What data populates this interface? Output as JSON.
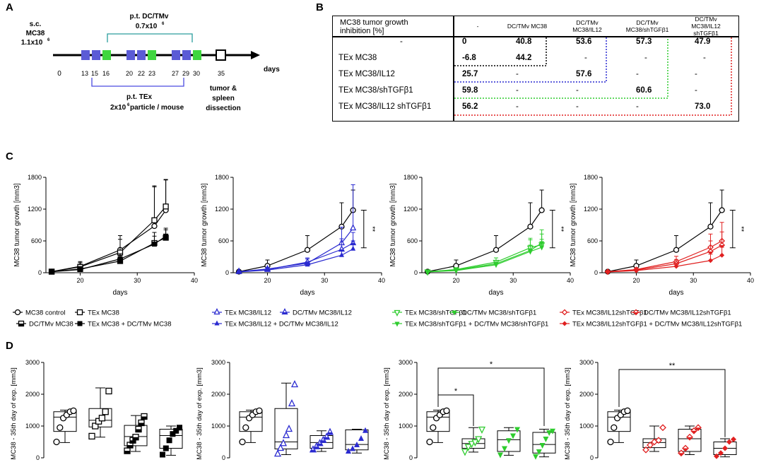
{
  "panels": {
    "A": "A",
    "B": "B",
    "C": "C",
    "D": "D"
  },
  "schedule": {
    "sc_label": "s.c.",
    "sc_cells": "MC38",
    "sc_dose": "1.1x10",
    "sc_dose_exp": "6",
    "dc_label": "p.t. DC/TMv",
    "dc_dose": "0.7x10",
    "dc_dose_exp": "6",
    "tex_label": "p.t. TEx",
    "tex_dose": "2x10",
    "tex_dose_exp": "6",
    "tex_dose_suffix": " particle / mouse",
    "day0": "0",
    "days": [
      "13",
      "15",
      "16",
      "20",
      "22",
      "23",
      "27",
      "29",
      "30",
      "35"
    ],
    "axis_label": "days",
    "endpoint_1": "tumor &",
    "endpoint_2": "spleen",
    "endpoint_3": "dissection",
    "colors": {
      "tex": "#5b5bd6",
      "dc": "#3fd63f",
      "bracket_dc": "#2a9d9d",
      "bracket_tex": "#4a4ae0"
    }
  },
  "table": {
    "title_1": "MC38 tumor growth",
    "title_2": "inhibition [%]",
    "headers": [
      "-",
      "DC/TMv MC38",
      "DC/TMv\nMC38/IL12",
      "DC/TMv\nMC38/shTGFβ1",
      "DC/TMv\nMC38/IL12\nshTGFβ1"
    ],
    "rows": [
      {
        "label": "-",
        "cells": [
          "0",
          "40.8",
          "53.6",
          "57.3",
          "47.9"
        ]
      },
      {
        "label": "TEx MC38",
        "cells": [
          "-6.8",
          "44.2",
          "",
          "",
          ""
        ]
      },
      {
        "label": "TEx MC38/IL12",
        "cells": [
          "25.7",
          "-",
          "57.6",
          "-",
          "-"
        ]
      },
      {
        "label": "TEx MC38/shTGFβ1",
        "cells": [
          "59.8",
          "-",
          "-",
          "60.6",
          "-"
        ]
      },
      {
        "label": "TEx MC38/IL12 shTGFβ1",
        "cells": [
          "56.2",
          "-",
          "-",
          "-",
          "73.0"
        ]
      }
    ],
    "row2_extra": [
      "-",
      "-",
      "-"
    ],
    "box_colors": [
      "#000000",
      "#2a2ad0",
      "#2ecc2e",
      "#e02020"
    ]
  },
  "chart_data": [
    {
      "type": "line",
      "id": "C1",
      "title": "",
      "xlabel": "days",
      "ylabel": "MC38 tumor growth [mm3]",
      "xlim": [
        14,
        40
      ],
      "ylim": [
        0,
        1800
      ],
      "xticks": [
        "20",
        "30",
        "40"
      ],
      "yticks": [
        "0",
        "600",
        "1200",
        "1800"
      ],
      "series": [
        {
          "name": "MC38 control",
          "x": [
            15,
            20,
            27,
            33,
            35
          ],
          "values": [
            20,
            120,
            430,
            880,
            1180
          ],
          "err": [
            15,
            90,
            270,
            740,
            580
          ]
        },
        {
          "name": "TEx MC38",
          "x": [
            15,
            20,
            27,
            33,
            35
          ],
          "values": [
            20,
            110,
            380,
            990,
            1250
          ],
          "err": [
            10,
            80,
            250,
            650,
            500
          ]
        },
        {
          "name": "DC/TMv MC38",
          "x": [
            15,
            20,
            27,
            33,
            35
          ],
          "values": [
            20,
            70,
            220,
            560,
            660
          ],
          "err": [
            10,
            40,
            100,
            200,
            150
          ]
        },
        {
          "name": "TEx MC38 + DC/TMv MC38",
          "x": [
            15,
            20,
            27,
            33,
            35
          ],
          "values": [
            18,
            60,
            260,
            540,
            690
          ],
          "err": [
            10,
            40,
            100,
            150,
            150
          ]
        }
      ]
    },
    {
      "type": "line",
      "id": "C2",
      "xlabel": "days",
      "ylabel": "MC38 tumor growth [mm3]",
      "xlim": [
        14,
        40
      ],
      "ylim": [
        0,
        1800
      ],
      "xticks": [
        "20",
        "30",
        "40"
      ],
      "yticks": [
        "0",
        "600",
        "1200",
        "1800"
      ],
      "significance": "**",
      "series": [
        {
          "name": "MC38 control",
          "x": [
            15,
            20,
            27,
            33,
            35
          ],
          "values": [
            20,
            130,
            430,
            870,
            1180
          ],
          "err": [
            15,
            110,
            270,
            450,
            380
          ]
        },
        {
          "name": "TEx MC38/IL12",
          "x": [
            15,
            20,
            27,
            33,
            35
          ],
          "values": [
            20,
            70,
            180,
            560,
            840
          ],
          "err": [
            10,
            30,
            80,
            300,
            820
          ]
        },
        {
          "name": "DC/TMv MC38/IL12",
          "x": [
            15,
            20,
            27,
            33,
            35
          ],
          "values": [
            18,
            60,
            200,
            440,
            560
          ],
          "err": [
            10,
            30,
            80,
            200,
            200
          ]
        },
        {
          "name": "TEx MC38/IL12 + DC/TMv MC38/IL12",
          "x": [
            15,
            20,
            27,
            33,
            35
          ],
          "values": [
            15,
            50,
            150,
            330,
            450
          ],
          "err": [
            10,
            30,
            60,
            100,
            150
          ]
        }
      ]
    },
    {
      "type": "line",
      "id": "C3",
      "xlabel": "days",
      "ylabel": "MC38 tumor growth [mm3]",
      "xlim": [
        14,
        40
      ],
      "ylim": [
        0,
        1800
      ],
      "xticks": [
        "20",
        "30",
        "40"
      ],
      "yticks": [
        "0",
        "600",
        "1200",
        "1800"
      ],
      "significance": "**",
      "series": [
        {
          "name": "MC38 control",
          "x": [
            15,
            20,
            27,
            33,
            35
          ],
          "values": [
            20,
            130,
            430,
            870,
            1180
          ],
          "err": [
            15,
            110,
            270,
            450,
            380
          ]
        },
        {
          "name": "TEx MC38/shTGFβ1",
          "x": [
            15,
            20,
            27,
            33,
            35
          ],
          "values": [
            20,
            60,
            200,
            470,
            530
          ],
          "err": [
            10,
            30,
            80,
            180,
            200
          ]
        },
        {
          "name": "DC/TMv MC38/shTGFβ1",
          "x": [
            15,
            20,
            27,
            33,
            35
          ],
          "values": [
            18,
            50,
            170,
            420,
            560
          ],
          "err": [
            10,
            30,
            60,
            200,
            250
          ]
        },
        {
          "name": "TEx MC38/shTGFβ1 + DC/TMv MC38/shTGFβ1",
          "x": [
            15,
            20,
            27,
            33,
            35
          ],
          "values": [
            15,
            40,
            150,
            400,
            480
          ],
          "err": [
            10,
            20,
            50,
            120,
            150
          ]
        }
      ]
    },
    {
      "type": "line",
      "id": "C4",
      "xlabel": "days",
      "ylabel": "MC38 tumor growth [mm3]",
      "xlim": [
        14,
        40
      ],
      "ylim": [
        0,
        1800
      ],
      "xticks": [
        "20",
        "30",
        "40"
      ],
      "yticks": [
        "0",
        "600",
        "1200",
        "1800"
      ],
      "significance": "**",
      "series": [
        {
          "name": "MC38 control",
          "x": [
            15,
            20,
            27,
            33,
            35
          ],
          "values": [
            20,
            130,
            430,
            870,
            1180
          ],
          "err": [
            15,
            110,
            270,
            450,
            380
          ]
        },
        {
          "name": "TEx MC38/IL12shTGFβ1",
          "x": [
            15,
            20,
            27,
            33,
            35
          ],
          "values": [
            20,
            60,
            210,
            480,
            600
          ],
          "err": [
            10,
            30,
            100,
            250,
            350
          ]
        },
        {
          "name": "DC/TMv MC38/IL12shTGFβ1",
          "x": [
            15,
            20,
            27,
            33,
            35
          ],
          "values": [
            18,
            50,
            170,
            400,
            520
          ],
          "err": [
            10,
            30,
            80,
            200,
            250
          ]
        },
        {
          "name": "TEx MC38/IL12shTGFβ1 + DC/TMv MC38/IL12shTGFβ1",
          "x": [
            15,
            20,
            27,
            33,
            35
          ],
          "values": [
            15,
            40,
            120,
            230,
            330
          ],
          "err": [
            10,
            20,
            60,
            120,
            150
          ]
        }
      ]
    },
    {
      "type": "box",
      "id": "D1",
      "ylabel": "MC38 - 35th day of exp. [mm3]",
      "ylim": [
        0,
        3000
      ],
      "yticks": [
        "0",
        "1000",
        "2000",
        "3000"
      ],
      "groups": [
        {
          "name": "MC38 control",
          "min": 480,
          "q1": 830,
          "median": 1280,
          "q3": 1450,
          "max": 1500,
          "points": [
            500,
            950,
            1250,
            1350,
            1450,
            1480
          ]
        },
        {
          "name": "TEx MC38",
          "min": 650,
          "q1": 970,
          "median": 1180,
          "q3": 1550,
          "max": 2200,
          "points": [
            680,
            1000,
            1150,
            1250,
            1450,
            2100
          ]
        },
        {
          "name": "DC/TMv MC38",
          "min": 200,
          "q1": 380,
          "median": 670,
          "q3": 1020,
          "max": 1330,
          "points": [
            220,
            400,
            550,
            650,
            900,
            1100,
            1300
          ]
        },
        {
          "name": "TEx MC38 + DC/TMv MC38",
          "min": 80,
          "q1": 300,
          "median": 700,
          "q3": 900,
          "max": 1000,
          "points": [
            100,
            300,
            550,
            750,
            850,
            950
          ]
        }
      ]
    },
    {
      "type": "box",
      "id": "D2",
      "ylabel": "MC38 - 35th day of exp. [mm3]",
      "ylim": [
        0,
        3000
      ],
      "yticks": [
        "0",
        "1000",
        "2000",
        "3000"
      ],
      "groups": [
        {
          "name": "MC38 control",
          "min": 480,
          "q1": 830,
          "median": 1280,
          "q3": 1450,
          "max": 1500,
          "points": [
            500,
            950,
            1250,
            1350,
            1450,
            1480
          ]
        },
        {
          "name": "TEx MC38/IL12",
          "min": 100,
          "q1": 280,
          "median": 500,
          "q3": 1550,
          "max": 2350,
          "points": [
            120,
            300,
            450,
            700,
            900,
            1700,
            2300
          ]
        },
        {
          "name": "DC/TMv MC38/IL12",
          "min": 200,
          "q1": 300,
          "median": 480,
          "q3": 700,
          "max": 850,
          "points": [
            250,
            350,
            450,
            550,
            650,
            800
          ]
        },
        {
          "name": "TEx MC38/IL12 + DC/TMv MC38/IL12",
          "min": 150,
          "q1": 250,
          "median": 420,
          "q3": 880,
          "max": 900,
          "points": [
            200,
            280,
            400,
            600,
            850
          ]
        }
      ]
    },
    {
      "type": "box",
      "id": "D3",
      "ylabel": "MC38 - 35th day of exp. [mm3]",
      "ylim": [
        0,
        3000
      ],
      "yticks": [
        "0",
        "1000",
        "2000",
        "3000"
      ],
      "significance": [
        "*",
        "*"
      ],
      "groups": [
        {
          "name": "MC38 control",
          "min": 480,
          "q1": 830,
          "median": 1280,
          "q3": 1450,
          "max": 1500,
          "points": [
            500,
            950,
            1250,
            1350,
            1450,
            1480
          ]
        },
        {
          "name": "TEx MC38/shTGFβ1",
          "min": 180,
          "q1": 300,
          "median": 450,
          "q3": 600,
          "max": 950,
          "points": [
            200,
            350,
            450,
            500,
            600,
            900
          ]
        },
        {
          "name": "DC/TMv MC38/shTGFβ1",
          "min": 80,
          "q1": 200,
          "median": 570,
          "q3": 850,
          "max": 950,
          "points": [
            100,
            300,
            550,
            700,
            900
          ]
        },
        {
          "name": "TEx MC38/shTGFβ1 + DC/TMv MC38/shTGFβ1",
          "min": 30,
          "q1": 150,
          "median": 420,
          "q3": 800,
          "max": 900,
          "points": [
            50,
            200,
            400,
            600,
            800,
            850
          ]
        }
      ]
    },
    {
      "type": "box",
      "id": "D4",
      "ylabel": "MC38 - 35th day of exp. [mm3]",
      "ylim": [
        0,
        3000
      ],
      "yticks": [
        "0",
        "1000",
        "2000",
        "3000"
      ],
      "significance": [
        "**"
      ],
      "groups": [
        {
          "name": "MC38 control",
          "min": 480,
          "q1": 830,
          "median": 1280,
          "q3": 1450,
          "max": 1500,
          "points": [
            500,
            950,
            1250,
            1350,
            1450,
            1480
          ]
        },
        {
          "name": "TEx MC38/IL12shTGFβ1",
          "min": 200,
          "q1": 320,
          "median": 480,
          "q3": 600,
          "max": 1000,
          "points": [
            250,
            400,
            500,
            550,
            950
          ]
        },
        {
          "name": "DC/TMv MC38/IL12shTGFβ1",
          "min": 100,
          "q1": 200,
          "median": 600,
          "q3": 900,
          "max": 1000,
          "points": [
            150,
            300,
            650,
            850,
            950
          ]
        },
        {
          "name": "TEx MC38/IL12shTGFβ1 + DC/TMv MC38/IL12shTGFβ1",
          "min": 30,
          "q1": 100,
          "median": 300,
          "q3": 500,
          "max": 600,
          "points": [
            50,
            150,
            300,
            500,
            580
          ]
        }
      ]
    }
  ],
  "legends": {
    "C1": [
      "MC38 control",
      "TEx MC38",
      "DC/TMv MC38",
      "TEx MC38 + DC/TMv MC38"
    ],
    "C2": [
      "TEx MC38/IL12",
      "DC/TMv MC38/IL12",
      "TEx MC38/IL12 + DC/TMv MC38/IL12"
    ],
    "C3": [
      "TEx MC38/shTGFβ1",
      "DC/TMv MC38/shTGFβ1",
      "TEx MC38/shTGFβ1 + DC/TMv MC38/shTGFβ1"
    ],
    "C4": [
      "TEx MC38/IL12shTGFβ1",
      "DC/TMv MC38/IL12shTGFβ1",
      "TEx MC38/IL12shTGFβ1 + DC/TMv MC38/IL12shTGFβ1"
    ]
  },
  "colors": {
    "black": "#000000",
    "blue": "#2a2ad0",
    "green": "#2ecc2e",
    "red": "#e02020"
  }
}
